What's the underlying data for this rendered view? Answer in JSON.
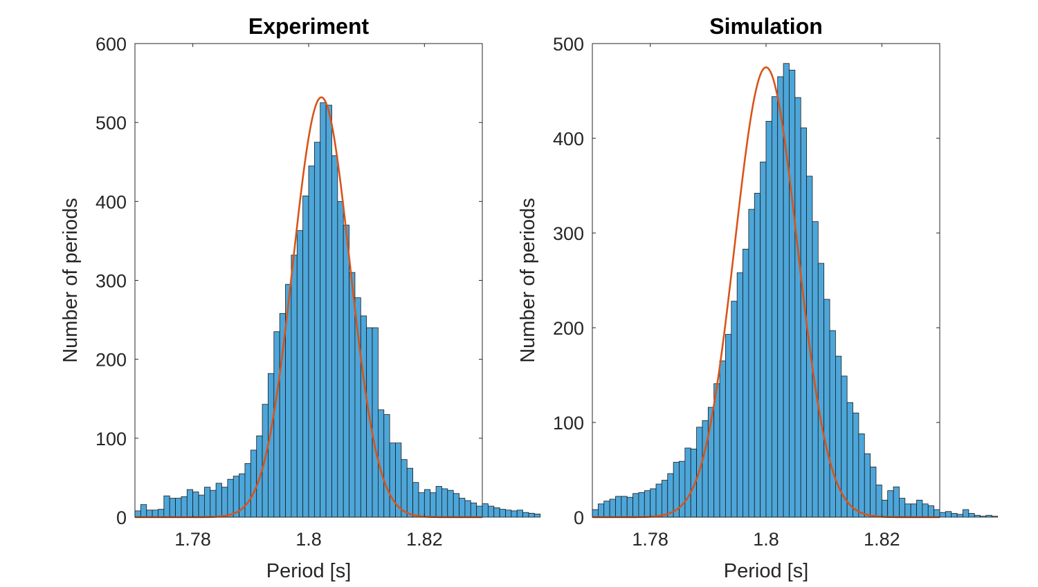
{
  "colors": {
    "bar_fill": "#4DA6D9",
    "bar_edge": "#1a1a1a",
    "fit_line": "#D95319",
    "axis": "#262626",
    "tick_text": "#262626"
  },
  "chart_data": [
    {
      "type": "bar",
      "id": "experiment",
      "title": "Experiment",
      "xlabel": "Period [s]",
      "ylabel": "Number of periods",
      "xlim": [
        1.77,
        1.83
      ],
      "ylim": [
        0,
        600
      ],
      "xticks": [
        1.78,
        1.8,
        1.82
      ],
      "xtick_labels": [
        "1.78",
        "1.8",
        "1.82"
      ],
      "yticks": [
        0,
        100,
        200,
        300,
        400,
        500,
        600
      ],
      "ytick_labels": [
        "0",
        "100",
        "200",
        "300",
        "400",
        "500",
        "600"
      ],
      "bin_start": 1.77,
      "bin_width": 0.001,
      "values": [
        8,
        16,
        9,
        9,
        10,
        27,
        24,
        24,
        26,
        35,
        32,
        28,
        38,
        34,
        43,
        38,
        48,
        52,
        55,
        68,
        85,
        103,
        143,
        182,
        235,
        258,
        295,
        332,
        363,
        407,
        445,
        475,
        525,
        522,
        458,
        400,
        370,
        310,
        278,
        255,
        240,
        240,
        136,
        130,
        94,
        94,
        73,
        62,
        44,
        31,
        35,
        31,
        39,
        36,
        34,
        30,
        24,
        21,
        18,
        14,
        17,
        14,
        12,
        10,
        9,
        8,
        9,
        6,
        5,
        4
      ],
      "fit": {
        "mu": 1.8022,
        "sigma": 0.0049,
        "peak": 532
      }
    },
    {
      "type": "bar",
      "id": "simulation",
      "title": "Simulation",
      "xlabel": "Period [s]",
      "ylabel": "Number of periods",
      "xlim": [
        1.77,
        1.83
      ],
      "ylim": [
        0,
        500
      ],
      "xticks": [
        1.78,
        1.8,
        1.82
      ],
      "xtick_labels": [
        "1.78",
        "1.8",
        "1.82"
      ],
      "yticks": [
        0,
        100,
        200,
        300,
        400,
        500
      ],
      "yticks_labels_note": "",
      "ytick_labels": [
        "0",
        "100",
        "200",
        "300",
        "400",
        "500"
      ],
      "bin_start": 1.77,
      "bin_width": 0.001,
      "values": [
        8,
        14,
        17,
        19,
        22,
        22,
        21,
        25,
        26,
        28,
        30,
        35,
        39,
        46,
        58,
        59,
        73,
        72,
        95,
        102,
        116,
        141,
        165,
        193,
        228,
        258,
        283,
        325,
        342,
        375,
        418,
        444,
        465,
        479,
        472,
        443,
        411,
        360,
        312,
        268,
        230,
        197,
        170,
        149,
        121,
        110,
        88,
        67,
        53,
        34,
        18,
        28,
        32,
        20,
        14,
        14,
        18,
        14,
        12,
        8,
        5,
        6,
        4,
        3,
        8,
        4,
        2,
        1,
        2,
        1
      ],
      "fit": {
        "mu": 1.8,
        "sigma": 0.0054,
        "peak": 475
      }
    }
  ]
}
